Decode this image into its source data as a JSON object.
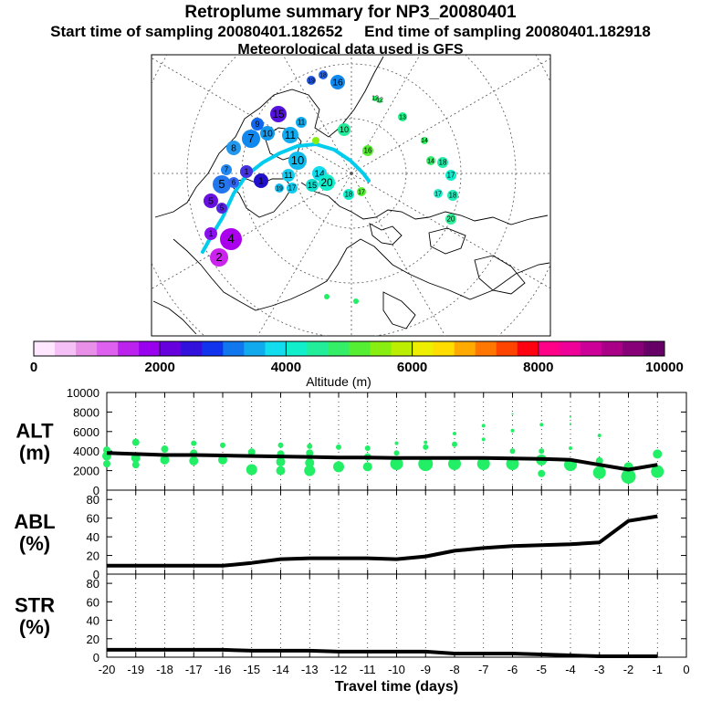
{
  "header": {
    "title": "Retroplume summary for NP3_20080401",
    "sampling_line": "Start time of sampling 20080401.182652     End time of sampling 20080401.182918",
    "met_line": "Meteorological data used is GFS"
  },
  "colors": {
    "plume_dots": "#22ee66",
    "track_line": "#00ccee",
    "line": "#000000"
  },
  "map_labels": [
    "1",
    "2",
    "3",
    "4",
    "5",
    "6",
    "7",
    "8",
    "9",
    "10",
    "11",
    "12",
    "13",
    "14",
    "15",
    "16",
    "17",
    "18",
    "19",
    "20"
  ],
  "colorbar": {
    "ticks": [
      "0",
      "2000",
      "4000",
      "6000",
      "8000",
      "10000"
    ],
    "label": "Altitude (m)",
    "colors": [
      "#ffe8ff",
      "#f5c0f5",
      "#e890e8",
      "#dd60ee",
      "#bb22ee",
      "#9900ee",
      "#6600dd",
      "#3311dd",
      "#1133ee",
      "#1177ee",
      "#11aaee",
      "#11ddee",
      "#11eecc",
      "#22ee99",
      "#33ee66",
      "#55ee33",
      "#88ee11",
      "#bbee00",
      "#eeee00",
      "#ffdd00",
      "#ffaa00",
      "#ff7700",
      "#ff4400",
      "#ff0011",
      "#ff0088",
      "#ee0099",
      "#cc0099",
      "#aa0088",
      "#880077",
      "#660066"
    ]
  },
  "chart_data": [
    {
      "type": "line",
      "name": "ALT",
      "ylabel": "ALT\n(m)",
      "ylim": [
        0,
        10000
      ],
      "yticks": [
        "0",
        "2000",
        "4000",
        "6000",
        "8000",
        "10000"
      ],
      "x": [
        -20,
        -19,
        -18,
        -17,
        -16,
        -15,
        -14,
        -13,
        -12,
        -11,
        -10,
        -9,
        -8,
        -7,
        -6,
        -5,
        -4,
        -3,
        -2,
        -1
      ],
      "values": [
        3800,
        3700,
        3600,
        3600,
        3550,
        3500,
        3450,
        3400,
        3350,
        3350,
        3300,
        3300,
        3300,
        3300,
        3250,
        3200,
        3100,
        2600,
        2100,
        2600
      ],
      "scatter": [
        {
          "x": -20,
          "y": 4100,
          "s": 4
        },
        {
          "x": -20,
          "y": 3500,
          "s": 5
        },
        {
          "x": -20,
          "y": 2700,
          "s": 4
        },
        {
          "x": -19,
          "y": 4900,
          "s": 4
        },
        {
          "x": -19,
          "y": 3300,
          "s": 5
        },
        {
          "x": -19,
          "y": 2600,
          "s": 4
        },
        {
          "x": -18,
          "y": 4200,
          "s": 4
        },
        {
          "x": -18,
          "y": 3100,
          "s": 5
        },
        {
          "x": -17,
          "y": 4800,
          "s": 3
        },
        {
          "x": -17,
          "y": 3800,
          "s": 4
        },
        {
          "x": -17,
          "y": 3000,
          "s": 5
        },
        {
          "x": -16,
          "y": 4600,
          "s": 3
        },
        {
          "x": -16,
          "y": 3100,
          "s": 5
        },
        {
          "x": -15,
          "y": 3900,
          "s": 4
        },
        {
          "x": -15,
          "y": 2100,
          "s": 6
        },
        {
          "x": -14,
          "y": 4600,
          "s": 3
        },
        {
          "x": -14,
          "y": 3700,
          "s": 4
        },
        {
          "x": -14,
          "y": 2900,
          "s": 5
        },
        {
          "x": -14,
          "y": 2000,
          "s": 5
        },
        {
          "x": -13,
          "y": 4500,
          "s": 3
        },
        {
          "x": -13,
          "y": 3800,
          "s": 4
        },
        {
          "x": -13,
          "y": 2800,
          "s": 5
        },
        {
          "x": -13,
          "y": 2000,
          "s": 6
        },
        {
          "x": -12,
          "y": 4400,
          "s": 3
        },
        {
          "x": -12,
          "y": 2400,
          "s": 6
        },
        {
          "x": -11,
          "y": 4300,
          "s": 3
        },
        {
          "x": -11,
          "y": 3400,
          "s": 4
        },
        {
          "x": -11,
          "y": 2400,
          "s": 5
        },
        {
          "x": -10,
          "y": 4800,
          "s": 2
        },
        {
          "x": -10,
          "y": 3800,
          "s": 3
        },
        {
          "x": -10,
          "y": 2700,
          "s": 7
        },
        {
          "x": -9,
          "y": 4900,
          "s": 2
        },
        {
          "x": -9,
          "y": 4400,
          "s": 3
        },
        {
          "x": -9,
          "y": 2700,
          "s": 8
        },
        {
          "x": -8,
          "y": 5800,
          "s": 2
        },
        {
          "x": -8,
          "y": 4700,
          "s": 3
        },
        {
          "x": -8,
          "y": 2700,
          "s": 7
        },
        {
          "x": -7,
          "y": 6600,
          "s": 2
        },
        {
          "x": -7,
          "y": 5200,
          "s": 2
        },
        {
          "x": -7,
          "y": 2700,
          "s": 7
        },
        {
          "x": -6,
          "y": 7800,
          "s": 1
        },
        {
          "x": -6,
          "y": 6100,
          "s": 2
        },
        {
          "x": -6,
          "y": 4000,
          "s": 3
        },
        {
          "x": -6,
          "y": 2700,
          "s": 7
        },
        {
          "x": -5,
          "y": 6700,
          "s": 2
        },
        {
          "x": -5,
          "y": 4000,
          "s": 3
        },
        {
          "x": -5,
          "y": 3100,
          "s": 6
        },
        {
          "x": -5,
          "y": 1700,
          "s": 4
        },
        {
          "x": -4,
          "y": 7500,
          "s": 1
        },
        {
          "x": -4,
          "y": 6800,
          "s": 1
        },
        {
          "x": -4,
          "y": 4300,
          "s": 2
        },
        {
          "x": -4,
          "y": 2600,
          "s": 7
        },
        {
          "x": -3,
          "y": 5600,
          "s": 2
        },
        {
          "x": -3,
          "y": 3000,
          "s": 4
        },
        {
          "x": -3,
          "y": 1800,
          "s": 7
        },
        {
          "x": -2,
          "y": 2400,
          "s": 5
        },
        {
          "x": -2,
          "y": 1400,
          "s": 8
        },
        {
          "x": -1,
          "y": 3700,
          "s": 5
        },
        {
          "x": -1,
          "y": 1900,
          "s": 7
        }
      ]
    },
    {
      "type": "line",
      "name": "ABL",
      "ylabel": "ABL\n(%)",
      "ylim": [
        0,
        90
      ],
      "yticks": [
        "0",
        "20",
        "40",
        "60",
        "80"
      ],
      "x": [
        -20,
        -19,
        -18,
        -17,
        -16,
        -15,
        -14,
        -13,
        -12,
        -11,
        -10,
        -9,
        -8,
        -7,
        -6,
        -5,
        -4,
        -3,
        -2,
        -1
      ],
      "values": [
        9,
        9,
        9,
        9,
        9,
        12,
        16,
        17,
        17,
        17,
        16,
        19,
        25,
        28,
        30,
        31,
        32,
        34,
        57,
        62
      ]
    },
    {
      "type": "line",
      "name": "STR",
      "ylabel": "STR\n(%)",
      "ylim": [
        0,
        90
      ],
      "yticks": [
        "0",
        "20",
        "40",
        "60",
        "80"
      ],
      "x": [
        -20,
        -19,
        -18,
        -17,
        -16,
        -15,
        -14,
        -13,
        -12,
        -11,
        -10,
        -9,
        -8,
        -7,
        -6,
        -5,
        -4,
        -3,
        -2,
        -1
      ],
      "values": [
        8,
        8,
        8,
        8,
        8,
        7,
        7,
        7,
        6,
        6,
        6,
        6,
        4,
        4,
        4,
        3,
        2,
        1,
        1,
        1
      ],
      "xlabel": "Travel time (days)",
      "xticks": [
        "-20",
        "-19",
        "-18",
        "-17",
        "-16",
        "-15",
        "-14",
        "-13",
        "-12",
        "-11",
        "-10",
        "-9",
        "-8",
        "-7",
        "-6",
        "-5",
        "-4",
        "-3",
        "-2",
        "-1",
        "0"
      ]
    }
  ]
}
